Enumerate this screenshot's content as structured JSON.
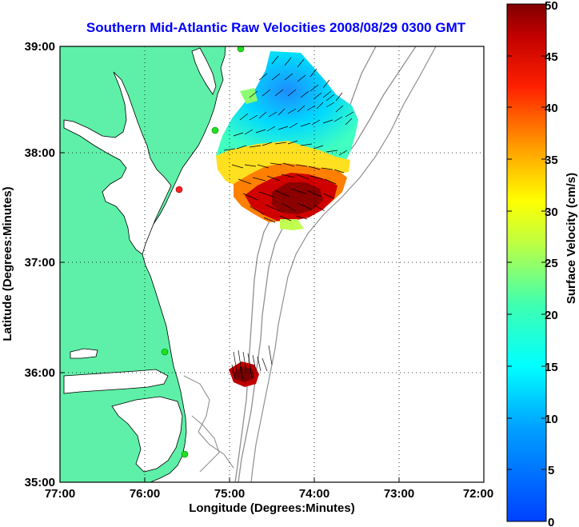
{
  "title": "Southern Mid-Atlantic Raw Velocities 2008/08/29 0300 GMT",
  "title_color": "#0000ff",
  "land_color": "#5ef0a8",
  "x_axis": {
    "label": "Longitude (Degrees:Minutes)",
    "ticks": [
      "77:00",
      "76:00",
      "75:00",
      "74:00",
      "73:00",
      "72:00"
    ]
  },
  "y_axis": {
    "label": "Latitude (Degrees:Minutes)",
    "ticks": [
      "39:00",
      "38:00",
      "37:00",
      "36:00",
      "35:00"
    ]
  },
  "colorbar": {
    "label": "Surface Velocity (cm/s)",
    "ticks": [
      "50",
      "45",
      "40",
      "35",
      "30",
      "25",
      "20",
      "15",
      "10",
      "5",
      "0"
    ],
    "min": 0,
    "max": 50,
    "colormap": "jet"
  },
  "grid": "dotted",
  "stations": [
    "green",
    "green",
    "red",
    "green",
    "green",
    "green"
  ]
}
